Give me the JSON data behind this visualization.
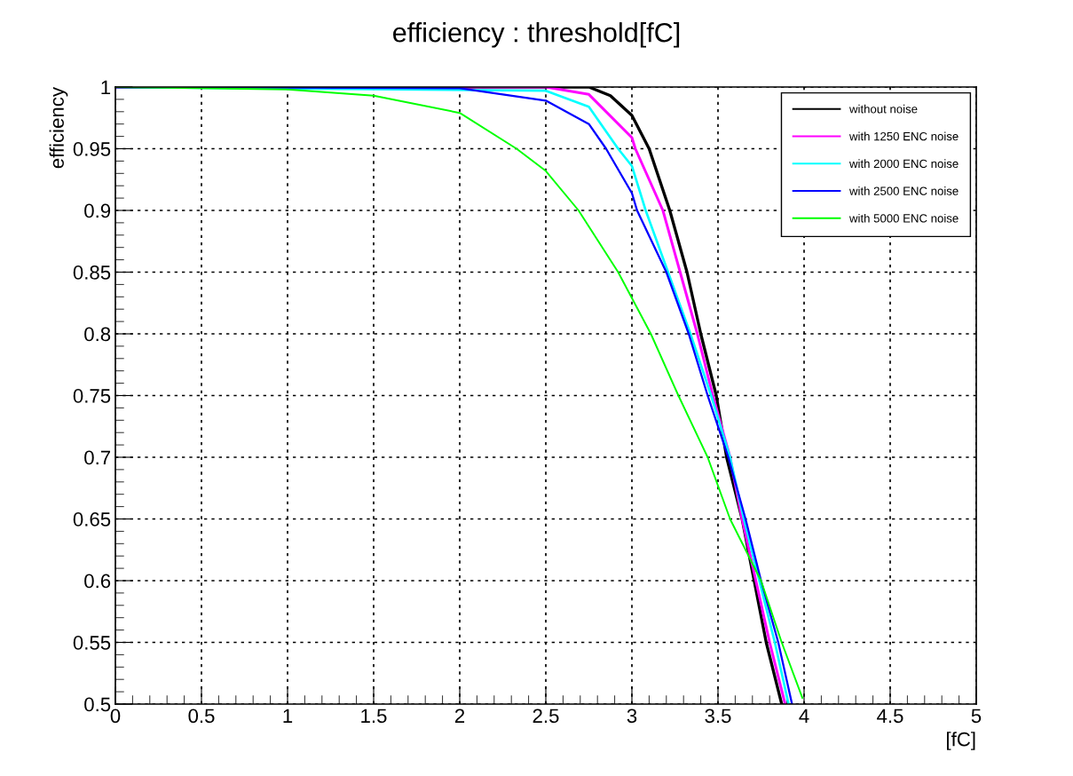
{
  "chart_data": {
    "type": "line",
    "title": "efficiency : threshold[fC]",
    "xlabel": "[fC]",
    "ylabel": "efficiency",
    "xlim": [
      0,
      5
    ],
    "xticks": [
      0,
      0.5,
      1,
      1.5,
      2,
      2.5,
      3,
      3.5,
      4,
      4.5,
      5
    ],
    "ylim": [
      0.5,
      1
    ],
    "yticks": [
      0.5,
      0.55,
      0.6,
      0.65,
      0.7,
      0.75,
      0.8,
      0.85,
      0.9,
      0.95,
      1
    ],
    "grid": true,
    "legend": "top right",
    "line_style": "solid",
    "marker": "none",
    "series": [
      {
        "name": "without noise",
        "color": "#000000",
        "x": [
          0,
          2.5,
          2.75,
          2.875,
          3,
          3.1,
          3.22,
          3.32,
          3.4,
          3.49,
          3.55,
          3.64,
          3.71,
          3.78,
          3.87
        ],
        "values": [
          1,
          1,
          1,
          0.993,
          0.977,
          0.95,
          0.9,
          0.85,
          0.8,
          0.75,
          0.7,
          0.65,
          0.6,
          0.55,
          0.5
        ]
      },
      {
        "name": "with 1250 ENC noise",
        "color": "#ff00ff",
        "x": [
          0,
          2.5,
          2.75,
          3,
          3.02,
          3.18,
          3.28,
          3.38,
          3.47,
          3.57,
          3.64,
          3.72,
          3.8,
          3.89
        ],
        "values": [
          1,
          1,
          0.994,
          0.959,
          0.95,
          0.9,
          0.85,
          0.8,
          0.75,
          0.7,
          0.65,
          0.6,
          0.55,
          0.5
        ]
      },
      {
        "name": "with 2000 ENC noise",
        "color": "#00ffff",
        "x": [
          0,
          2.5,
          2.75,
          2.92,
          3,
          3.08,
          3.21,
          3.34,
          3.46,
          3.57,
          3.65,
          3.74,
          3.83,
          3.91
        ],
        "values": [
          1,
          0.997,
          0.984,
          0.95,
          0.936,
          0.9,
          0.85,
          0.8,
          0.75,
          0.7,
          0.65,
          0.6,
          0.55,
          0.5
        ]
      },
      {
        "name": "with 2500 ENC noise",
        "color": "#0000ff",
        "x": [
          0,
          2,
          2.5,
          2.75,
          2.85,
          3,
          3.03,
          3.2,
          3.33,
          3.44,
          3.56,
          3.66,
          3.75,
          3.85,
          3.93
        ],
        "values": [
          1,
          0.999,
          0.989,
          0.97,
          0.95,
          0.914,
          0.9,
          0.85,
          0.8,
          0.75,
          0.7,
          0.65,
          0.6,
          0.55,
          0.5
        ]
      },
      {
        "name": "with 5000 ENC noise",
        "color": "#00ff00",
        "x": [
          0,
          1,
          1.5,
          2,
          2.33,
          2.5,
          2.69,
          2.92,
          3,
          3.11,
          3.27,
          3.44,
          3.57,
          3.75,
          3.87,
          3.99
        ],
        "values": [
          1,
          0.998,
          0.993,
          0.979,
          0.95,
          0.932,
          0.9,
          0.85,
          0.829,
          0.8,
          0.75,
          0.7,
          0.65,
          0.6,
          0.55,
          0.505
        ]
      }
    ]
  }
}
